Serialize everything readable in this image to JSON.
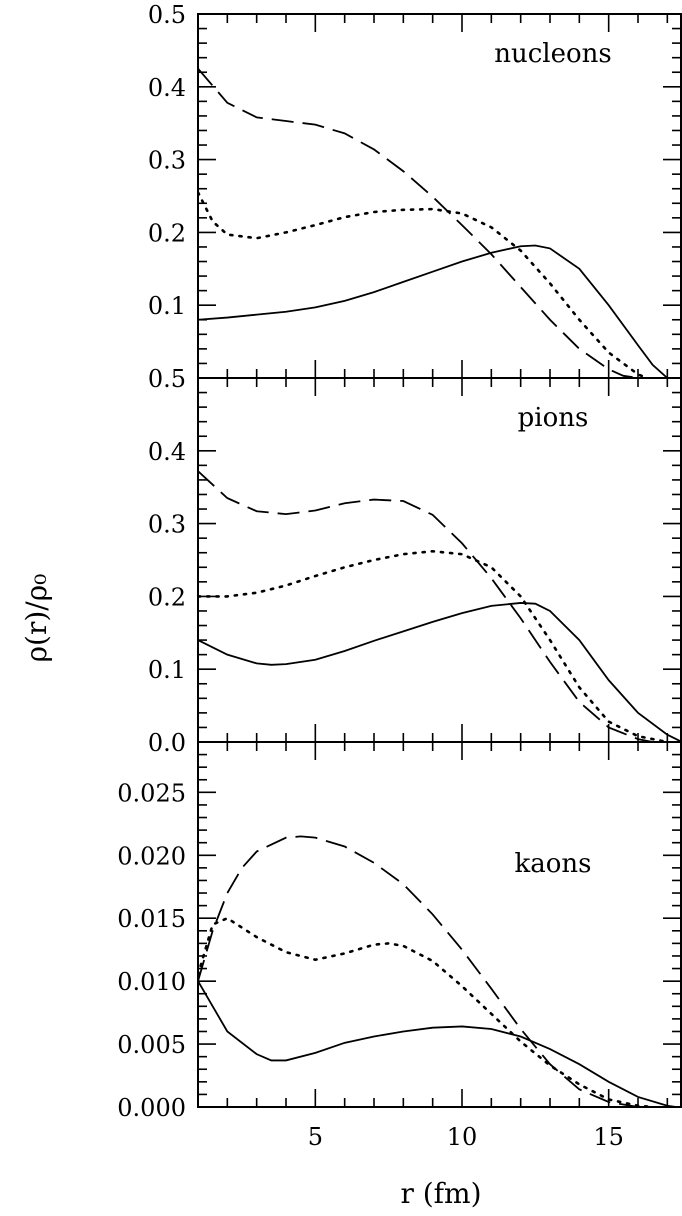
{
  "chart_data": [
    {
      "type": "line",
      "panel_label": "nucleons",
      "xlim": [
        1,
        17.5
      ],
      "ylim": [
        0,
        0.5
      ],
      "yticks": [
        0.1,
        0.2,
        0.3,
        0.4,
        0.5
      ],
      "ytick_labels": [
        "0.1",
        "0.2",
        "0.3",
        "0.4",
        "0.5"
      ],
      "series": [
        {
          "style": "solid",
          "x": [
            1,
            2,
            3,
            4,
            5,
            6,
            7,
            8,
            9,
            10,
            11,
            12,
            12.5,
            13,
            14,
            15,
            16,
            16.5,
            17
          ],
          "y": [
            0.08,
            0.083,
            0.087,
            0.091,
            0.097,
            0.106,
            0.118,
            0.132,
            0.146,
            0.16,
            0.172,
            0.181,
            0.182,
            0.178,
            0.15,
            0.1,
            0.045,
            0.018,
            0.0
          ]
        },
        {
          "style": "dashed",
          "x": [
            1,
            2,
            3,
            4,
            5,
            6,
            7,
            8,
            9,
            10,
            11,
            12,
            13,
            14,
            15,
            15.5,
            16
          ],
          "y": [
            0.425,
            0.378,
            0.358,
            0.353,
            0.348,
            0.336,
            0.314,
            0.284,
            0.249,
            0.21,
            0.17,
            0.125,
            0.08,
            0.04,
            0.012,
            0.003,
            0.0
          ]
        },
        {
          "style": "dotted",
          "x": [
            1,
            1.5,
            2,
            3,
            4,
            5,
            6,
            7,
            8,
            9,
            10,
            11,
            12,
            13,
            14,
            15,
            16,
            16.3
          ],
          "y": [
            0.255,
            0.215,
            0.197,
            0.192,
            0.2,
            0.21,
            0.221,
            0.228,
            0.231,
            0.232,
            0.226,
            0.207,
            0.175,
            0.13,
            0.08,
            0.035,
            0.005,
            0.0
          ]
        }
      ]
    },
    {
      "type": "line",
      "panel_label": "pions",
      "xlim": [
        1,
        17.5
      ],
      "ylim": [
        0,
        0.5
      ],
      "yticks": [
        0.0,
        0.1,
        0.2,
        0.3,
        0.4,
        0.5
      ],
      "ytick_labels": [
        "0.0",
        "0.1",
        "0.2",
        "0.3",
        "0.4",
        "0.5"
      ],
      "series": [
        {
          "style": "solid",
          "x": [
            1,
            2,
            3,
            3.5,
            4,
            5,
            6,
            7,
            8,
            9,
            10,
            11,
            12,
            12.5,
            13,
            14,
            15,
            16,
            17,
            17.5
          ],
          "y": [
            0.14,
            0.12,
            0.108,
            0.106,
            0.107,
            0.113,
            0.125,
            0.139,
            0.152,
            0.165,
            0.177,
            0.187,
            0.191,
            0.19,
            0.18,
            0.14,
            0.085,
            0.04,
            0.01,
            0.0
          ]
        },
        {
          "style": "dashed",
          "x": [
            1,
            2,
            3,
            4,
            5,
            6,
            7,
            8,
            9,
            10,
            11,
            12,
            13,
            14,
            15,
            16,
            16.5
          ],
          "y": [
            0.372,
            0.335,
            0.317,
            0.313,
            0.318,
            0.328,
            0.333,
            0.331,
            0.312,
            0.273,
            0.225,
            0.17,
            0.11,
            0.055,
            0.02,
            0.004,
            0.0
          ]
        },
        {
          "style": "dotted",
          "x": [
            1,
            2,
            3,
            4,
            5,
            6,
            7,
            8,
            9,
            10,
            11,
            12,
            13,
            14,
            15,
            16,
            17
          ],
          "y": [
            0.2,
            0.2,
            0.205,
            0.215,
            0.228,
            0.24,
            0.25,
            0.258,
            0.262,
            0.258,
            0.24,
            0.2,
            0.14,
            0.075,
            0.028,
            0.008,
            0.0
          ]
        }
      ]
    },
    {
      "type": "line",
      "panel_label": "kaons",
      "xlim": [
        1,
        17.5
      ],
      "ylim": [
        0,
        0.029
      ],
      "yticks": [
        0.0,
        0.005,
        0.01,
        0.015,
        0.02,
        0.025
      ],
      "ytick_labels": [
        "0.000",
        "0.005",
        "0.010",
        "0.015",
        "0.020",
        "0.025"
      ],
      "xticks": [
        5,
        10,
        15
      ],
      "xtick_labels": [
        "5",
        "10",
        "15"
      ],
      "series": [
        {
          "style": "solid",
          "x": [
            1,
            1.5,
            2,
            3,
            3.5,
            4,
            5,
            6,
            7,
            8,
            9,
            10,
            11,
            12,
            13,
            14,
            15,
            16,
            17,
            17.3
          ],
          "y": [
            0.01,
            0.008,
            0.006,
            0.0042,
            0.0037,
            0.0037,
            0.0043,
            0.0051,
            0.0056,
            0.006,
            0.0063,
            0.0064,
            0.0062,
            0.0056,
            0.0046,
            0.0034,
            0.002,
            0.0008,
            0.0001,
            0.0
          ]
        },
        {
          "style": "dashed",
          "x": [
            1,
            1.5,
            2,
            2.5,
            3,
            4,
            4.5,
            5,
            6,
            7,
            8,
            9,
            10,
            11,
            12,
            13,
            14,
            15,
            16
          ],
          "y": [
            0.01,
            0.014,
            0.017,
            0.019,
            0.0203,
            0.0214,
            0.0215,
            0.0214,
            0.0207,
            0.0194,
            0.0177,
            0.0153,
            0.0125,
            0.0094,
            0.0062,
            0.0034,
            0.0014,
            0.0004,
            0.0
          ]
        },
        {
          "style": "dotted",
          "x": [
            1,
            1.5,
            2,
            3,
            4,
            5,
            6,
            7,
            7.5,
            8,
            9,
            10,
            11,
            12,
            13,
            14,
            15,
            16,
            16.5
          ],
          "y": [
            0.0105,
            0.0145,
            0.015,
            0.0135,
            0.0123,
            0.0117,
            0.0122,
            0.0129,
            0.013,
            0.0128,
            0.0116,
            0.0096,
            0.0074,
            0.0052,
            0.0033,
            0.0018,
            0.0006,
            0.0001,
            0.0
          ]
        }
      ]
    }
  ],
  "axes": {
    "xlabel": "r  (fm)",
    "ylabel": "ρ(r)/ρ₀"
  }
}
